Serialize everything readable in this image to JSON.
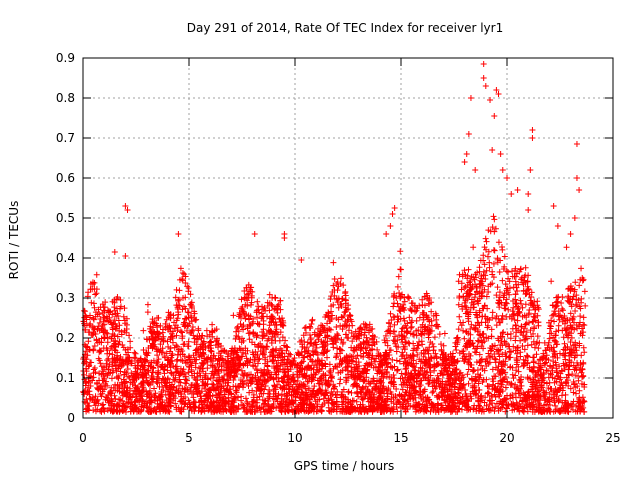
{
  "chart_data": {
    "type": "scatter",
    "title": "Day 291 of 2014, Rate Of TEC Index for receiver lyr1",
    "xlabel": "GPS time / hours",
    "ylabel": "ROTI / TECUs",
    "xlim": [
      0,
      25
    ],
    "ylim": [
      0,
      0.9
    ],
    "x_ticks": [
      0,
      5,
      10,
      15,
      20,
      25
    ],
    "y_ticks": [
      0,
      0.1,
      0.2,
      0.3,
      0.4,
      0.5,
      0.6,
      0.7,
      0.8,
      0.9
    ],
    "x_tick_labels": [
      "0",
      "5",
      "10",
      "15",
      "20",
      "25"
    ],
    "y_tick_labels": [
      "0",
      "0.1",
      "0.2",
      "0.3",
      "0.4",
      "0.5",
      "0.6",
      "0.7",
      "0.8",
      "0.9"
    ],
    "grid": true,
    "marker": "+",
    "marker_color": "#ff0000",
    "series": [
      {
        "name": "ROTI",
        "description": "Dense band of values 0.02-0.35 across 0-23.7 h; notable spikes ~0.52 near 2 h, ~0.46 near 4.5 h, 8 h and 9.5 h, ~0.52 near 14.7 h, and peaks up to ~0.88 between 18-21 h, ~0.72 at 21.2 h, ~0.69 at 23.3 h.",
        "points": [
          [
            2.0,
            0.53
          ],
          [
            2.1,
            0.52
          ],
          [
            4.5,
            0.46
          ],
          [
            8.1,
            0.46
          ],
          [
            9.5,
            0.46
          ],
          [
            9.5,
            0.45
          ],
          [
            10.3,
            0.395
          ],
          [
            1.5,
            0.415
          ],
          [
            2.0,
            0.405
          ],
          [
            14.6,
            0.51
          ],
          [
            14.7,
            0.525
          ],
          [
            14.5,
            0.48
          ],
          [
            14.3,
            0.46
          ],
          [
            18.0,
            0.64
          ],
          [
            18.1,
            0.66
          ],
          [
            18.2,
            0.71
          ],
          [
            18.3,
            0.8
          ],
          [
            18.5,
            0.62
          ],
          [
            18.9,
            0.885
          ],
          [
            18.9,
            0.85
          ],
          [
            19.0,
            0.83
          ],
          [
            19.2,
            0.795
          ],
          [
            19.5,
            0.82
          ],
          [
            19.6,
            0.81
          ],
          [
            19.4,
            0.755
          ],
          [
            19.3,
            0.67
          ],
          [
            19.7,
            0.66
          ],
          [
            19.8,
            0.62
          ],
          [
            20.0,
            0.6
          ],
          [
            20.2,
            0.56
          ],
          [
            20.5,
            0.57
          ],
          [
            21.0,
            0.56
          ],
          [
            21.2,
            0.72
          ],
          [
            21.2,
            0.7
          ],
          [
            21.1,
            0.62
          ],
          [
            21.0,
            0.52
          ],
          [
            22.2,
            0.53
          ],
          [
            22.4,
            0.48
          ],
          [
            23.0,
            0.46
          ],
          [
            23.3,
            0.685
          ],
          [
            23.3,
            0.6
          ],
          [
            23.4,
            0.57
          ],
          [
            23.2,
            0.5
          ]
        ]
      }
    ]
  }
}
